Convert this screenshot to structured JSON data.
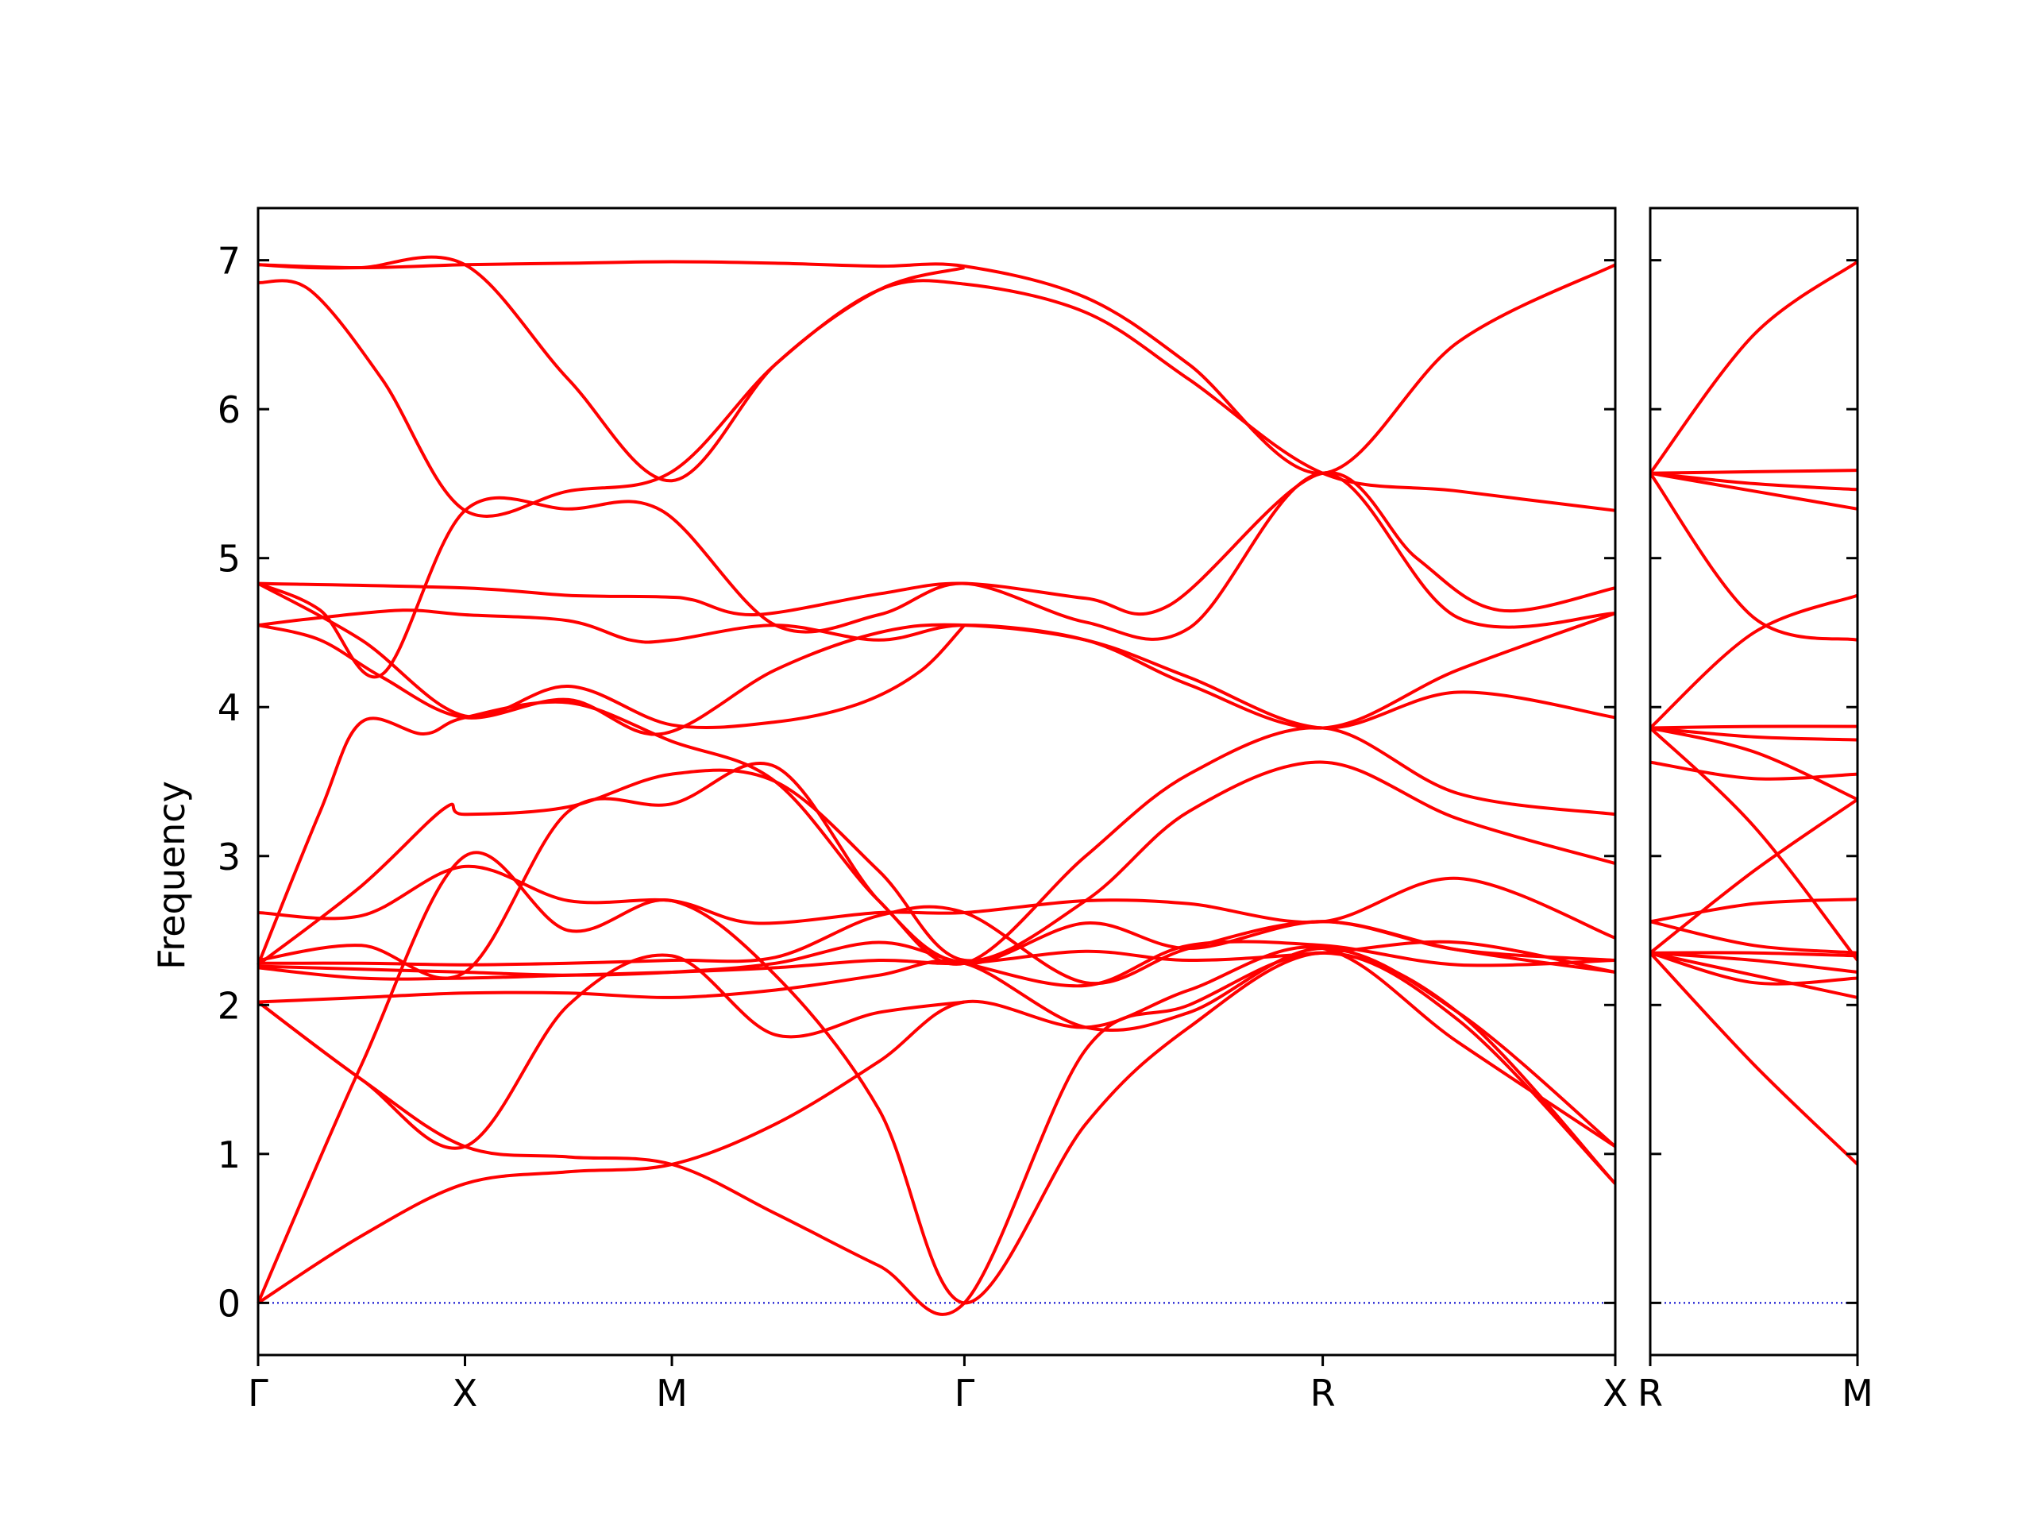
{
  "chart_data": {
    "type": "line",
    "ylabel": "Frequency",
    "ylim": [
      -0.35,
      7.35
    ],
    "yticks": [
      0,
      1,
      2,
      3,
      4,
      5,
      6,
      7
    ],
    "line_color": "#ff0000",
    "zero_line_color": "#0000cc",
    "panels": [
      {
        "name": "left",
        "xticks": [
          {
            "label": "Γ",
            "x": 0
          },
          {
            "label": "X",
            "x": 1
          },
          {
            "label": "M",
            "x": 2
          },
          {
            "label": "Γ",
            "x": 3.414
          },
          {
            "label": "R",
            "x": 5.146
          },
          {
            "label": "X",
            "x": 6.56
          }
        ],
        "series": [
          {
            "x": [
              0,
              0.5,
              1,
              1.5,
              2,
              2.5,
              3,
              3.414,
              4,
              4.5,
              5.146,
              5.8,
              6.56
            ],
            "y": [
              6.97,
              6.95,
              6.97,
              6.98,
              6.99,
              6.98,
              6.96,
              6.96,
              6.75,
              6.3,
              5.57,
              6.45,
              6.97
            ]
          },
          {
            "x": [
              0,
              0.25,
              0.6,
              1,
              1.5,
              2,
              2.5,
              3,
              3.414,
              4,
              4.5,
              5.146,
              5.8,
              6.56
            ],
            "y": [
              6.85,
              6.8,
              6.2,
              5.32,
              5.45,
              5.58,
              6.3,
              6.8,
              6.84,
              6.65,
              6.2,
              5.57,
              5.45,
              5.32
            ]
          },
          {
            "x": [
              0,
              0.25,
              0.5,
              1,
              1.5,
              2,
              2.5,
              3,
              3.414
            ],
            "y": [
              6.97,
              6.95,
              6.95,
              6.97,
              6.2,
              5.52,
              6.3,
              6.8,
              6.95
            ]
          },
          {
            "x": [
              0,
              1,
              1.5,
              1.95,
              2.1,
              2.4,
              3,
              3.414,
              4,
              4.4,
              5.146,
              5.6,
              6.0,
              6.56
            ],
            "y": [
              4.83,
              4.8,
              4.75,
              4.74,
              4.72,
              4.62,
              4.76,
              4.83,
              4.73,
              4.68,
              5.57,
              5.0,
              4.65,
              4.8
            ]
          },
          {
            "x": [
              0,
              0.3,
              0.6,
              1,
              1.5,
              1.95,
              2.5,
              3,
              3.414,
              4,
              4.5,
              5.146,
              5.8,
              6.56
            ],
            "y": [
              4.83,
              4.65,
              4.22,
              5.32,
              5.33,
              5.32,
              4.55,
              4.62,
              4.83,
              4.57,
              4.53,
              5.57,
              4.6,
              4.63
            ]
          },
          {
            "x": [
              0,
              0.3,
              0.6,
              1,
              1.5,
              1.95,
              2.5,
              3,
              3.414,
              4,
              4.5,
              5.146,
              5.8,
              6.56
            ],
            "y": [
              4.55,
              4.45,
              4.2,
              3.93,
              4.05,
              3.82,
              4.25,
              4.5,
              4.55,
              4.45,
              4.2,
              3.86,
              4.1,
              3.93
            ]
          },
          {
            "x": [
              0,
              0.3,
              0.7,
              1,
              1.5,
              1.8,
              2,
              2.5,
              3,
              3.414,
              4,
              4.5,
              5.146,
              5.8,
              6.56
            ],
            "y": [
              4.55,
              4.6,
              4.65,
              4.62,
              4.58,
              4.45,
              4.45,
              4.55,
              4.45,
              4.55,
              4.45,
              4.15,
              3.86,
              4.25,
              4.63
            ]
          },
          {
            "x": [
              0,
              0.5,
              1,
              1.5,
              2,
              2.5,
              2.9,
              3.2,
              3.414
            ],
            "y": [
              4.83,
              4.45,
              3.94,
              4.14,
              3.88,
              3.9,
              4.02,
              4.24,
              4.55
            ]
          },
          {
            "x": [
              0,
              0.3,
              0.5,
              0.8,
              1,
              1.5,
              2,
              2.5,
              3,
              3.414,
              4,
              4.5,
              5.146,
              5.8,
              6.56
            ],
            "y": [
              2.27,
              3.3,
              3.9,
              3.82,
              3.93,
              4.03,
              3.77,
              3.5,
              2.7,
              2.28,
              3.0,
              3.55,
              3.86,
              3.42,
              3.28
            ]
          },
          {
            "x": [
              0,
              0.5,
              0.9,
              1,
              1.5,
              2,
              2.5,
              3,
              3.414,
              4,
              4.5,
              5.146,
              5.8,
              6.56
            ],
            "y": [
              2.27,
              2.8,
              3.32,
              3.28,
              3.33,
              3.55,
              3.5,
              2.9,
              2.3,
              2.7,
              3.3,
              3.63,
              3.25,
              2.95
            ]
          },
          {
            "x": [
              0,
              0.5,
              1,
              1.5,
              2,
              2.4,
              3,
              3.414,
              4,
              4.5,
              5.146,
              5.8,
              6.56
            ],
            "y": [
              2.62,
              2.6,
              2.93,
              2.7,
              2.7,
              2.55,
              2.62,
              2.62,
              2.7,
              2.68,
              2.56,
              2.85,
              2.45
            ]
          },
          {
            "x": [
              0,
              0.5,
              1,
              1.5,
              2,
              2.5,
              3,
              3.414,
              4,
              4.5,
              5.146,
              5.8,
              6.56
            ],
            "y": [
              2.3,
              2.4,
              2.22,
              3.3,
              3.35,
              3.6,
              2.7,
              2.28,
              2.55,
              2.38,
              2.56,
              2.37,
              2.3
            ]
          },
          {
            "x": [
              0,
              0.5,
              1,
              1.5,
              2,
              2.5,
              3,
              3.414,
              4,
              4.5,
              5.146,
              5.8,
              6.56
            ],
            "y": [
              2.28,
              2.28,
              2.27,
              2.28,
              2.3,
              2.32,
              2.6,
              2.62,
              2.15,
              2.38,
              2.56,
              2.37,
              2.22
            ]
          },
          {
            "x": [
              0,
              0.5,
              1,
              1.5,
              2,
              2.5,
              3,
              3.414,
              4,
              4.5,
              5.146,
              5.8,
              6.56
            ],
            "y": [
              2.26,
              2.24,
              2.22,
              2.2,
              2.22,
              2.28,
              2.42,
              2.28,
              2.13,
              2.4,
              2.4,
              2.27,
              2.3
            ]
          },
          {
            "x": [
              0,
              0.5,
              1,
              1.5,
              2,
              2.5,
              3,
              3.414,
              4,
              4.5,
              5.146,
              5.8,
              6.56
            ],
            "y": [
              2.25,
              2.18,
              2.18,
              2.2,
              2.22,
              2.25,
              2.3,
              2.28,
              2.36,
              2.3,
              2.35,
              2.42,
              2.22
            ]
          },
          {
            "x": [
              0,
              0.5,
              1,
              1.5,
              2,
              2.5,
              3,
              3.414,
              4,
              4.5,
              5.146,
              5.8,
              6.56
            ],
            "y": [
              2.02,
              2.05,
              2.08,
              2.08,
              2.05,
              2.1,
              2.2,
              2.28,
              1.85,
              1.95,
              2.38,
              1.95,
              1.05
            ]
          },
          {
            "x": [
              0,
              0.5,
              1,
              1.5,
              2,
              2.5,
              3,
              3.414
            ],
            "y": [
              2.02,
              1.5,
              1.05,
              2.0,
              2.33,
              1.8,
              1.95,
              2.02
            ]
          },
          {
            "x": [
              0,
              0.5,
              1,
              1.5,
              2,
              2.5,
              3,
              3.414,
              4,
              4.5,
              5.146,
              5.8,
              6.56
            ],
            "y": [
              2.02,
              1.5,
              1.05,
              0.98,
              0.93,
              0.6,
              0.25,
              0.0,
              1.7,
              2.0,
              2.35,
              1.95,
              0.8
            ]
          },
          {
            "x": [
              0,
              0.5,
              1,
              1.5,
              2,
              2.5,
              3,
              3.414,
              4,
              4.5,
              5.146,
              5.8,
              6.56
            ],
            "y": [
              0.0,
              0.45,
              0.8,
              0.88,
              0.93,
              1.2,
              1.62,
              2.02,
              1.85,
              2.1,
              2.38,
              1.75,
              1.05
            ]
          },
          {
            "x": [
              0,
              0.5,
              1,
              1.5,
              2,
              2.5,
              3,
              3.414,
              4,
              4.5,
              5.146,
              5.8,
              6.56
            ],
            "y": [
              0.0,
              1.6,
              3.0,
              2.5,
              2.7,
              2.2,
              1.3,
              0.0,
              1.2,
              1.85,
              2.35,
              1.9,
              0.8
            ]
          }
        ]
      },
      {
        "name": "right",
        "xticks": [
          {
            "label": "R",
            "x": 0
          },
          {
            "label": "M",
            "x": 1
          }
        ],
        "series": [
          {
            "x": [
              0,
              0.5,
              1
            ],
            "y": [
              5.57,
              6.5,
              6.99
            ]
          },
          {
            "x": [
              0,
              0.5,
              1
            ],
            "y": [
              5.57,
              5.58,
              5.59
            ]
          },
          {
            "x": [
              0,
              0.5,
              1
            ],
            "y": [
              5.57,
              5.5,
              5.46
            ]
          },
          {
            "x": [
              0,
              0.5,
              1
            ],
            "y": [
              5.57,
              5.45,
              5.33
            ]
          },
          {
            "x": [
              0,
              0.5,
              1
            ],
            "y": [
              5.57,
              4.6,
              4.45
            ]
          },
          {
            "x": [
              0,
              0.5,
              1
            ],
            "y": [
              3.86,
              4.5,
              4.75
            ]
          },
          {
            "x": [
              0,
              0.5,
              1
            ],
            "y": [
              3.86,
              3.87,
              3.87
            ]
          },
          {
            "x": [
              0,
              0.5,
              1
            ],
            "y": [
              3.86,
              3.8,
              3.78
            ]
          },
          {
            "x": [
              0,
              0.5,
              1
            ],
            "y": [
              3.86,
              3.7,
              3.38
            ]
          },
          {
            "x": [
              0,
              0.5,
              1
            ],
            "y": [
              3.63,
              3.52,
              3.55
            ]
          },
          {
            "x": [
              0,
              0.5,
              1
            ],
            "y": [
              3.86,
              3.2,
              2.3
            ]
          },
          {
            "x": [
              0,
              0.5,
              1
            ],
            "y": [
              2.56,
              2.68,
              2.71
            ]
          },
          {
            "x": [
              0,
              0.5,
              1
            ],
            "y": [
              2.35,
              2.9,
              3.38
            ]
          },
          {
            "x": [
              0,
              0.5,
              1
            ],
            "y": [
              2.56,
              2.4,
              2.35
            ]
          },
          {
            "x": [
              0,
              0.5,
              1
            ],
            "y": [
              2.35,
              2.35,
              2.33
            ]
          },
          {
            "x": [
              0,
              0.5,
              1
            ],
            "y": [
              2.35,
              2.3,
              2.22
            ]
          },
          {
            "x": [
              0,
              0.5,
              1
            ],
            "y": [
              2.35,
              2.15,
              2.18
            ]
          },
          {
            "x": [
              0,
              0.5,
              1
            ],
            "y": [
              2.35,
              2.2,
              2.05
            ]
          },
          {
            "x": [
              0,
              0.5,
              1
            ],
            "y": [
              2.35,
              1.6,
              0.93
            ]
          }
        ]
      }
    ]
  }
}
